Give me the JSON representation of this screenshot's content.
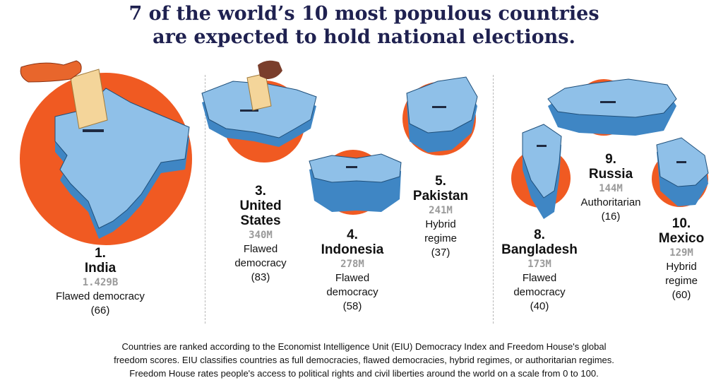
{
  "headline": {
    "line1": "7 of the world’s 10 most populous countries",
    "line2": "are expected to hold national elections."
  },
  "countries": [
    {
      "rank": "1.",
      "name": "India",
      "population": "1.429B",
      "regime": "Flawed democracy",
      "score": "(66)"
    },
    {
      "rank": "3.",
      "name_line1": "United",
      "name_line2": "States",
      "population": "340M",
      "regime_line1": "Flawed",
      "regime_line2": "democracy",
      "score": "(83)"
    },
    {
      "rank": "4.",
      "name": "Indonesia",
      "population": "278M",
      "regime_line1": "Flawed",
      "regime_line2": "democracy",
      "score": "(58)"
    },
    {
      "rank": "5.",
      "name": "Pakistan",
      "population": "241M",
      "regime_line1": "Hybrid",
      "regime_line2": "regime",
      "score": "(37)"
    },
    {
      "rank": "8.",
      "name": "Bangladesh",
      "population": "173M",
      "regime_line1": "Flawed",
      "regime_line2": "democracy",
      "score": "(40)"
    },
    {
      "rank": "9.",
      "name": "Russia",
      "population": "144M",
      "regime": "Authoritarian",
      "score": "(16)"
    },
    {
      "rank": "10.",
      "name": "Mexico",
      "population": "129M",
      "regime_line1": "Hybrid",
      "regime_line2": "regime",
      "score": "(60)"
    }
  ],
  "footnote": {
    "line1": "Countries are ranked according to the Economist Intelligence Unit (EIU) Democracy Index and Freedom House's global",
    "line2": "freedom scores. EIU classifies countries as full democracies, flawed democracies, hybrid regimes, or authoritarian regimes.",
    "line3": "Freedom House rates people's access to political rights and civil liberties around the world on a scale from 0 to 100."
  },
  "colors": {
    "headline": "#1f2150",
    "circle": "#f05a22",
    "map": "#6aa7d9",
    "map_side": "#3f86c4",
    "ballot": "#f4d59a",
    "hand_orange": "#e8662c",
    "hand_brown": "#7a3e2c"
  },
  "icons": [
    "ballot-box-map-icon",
    "ballot-paper-icon",
    "hand-icon"
  ]
}
